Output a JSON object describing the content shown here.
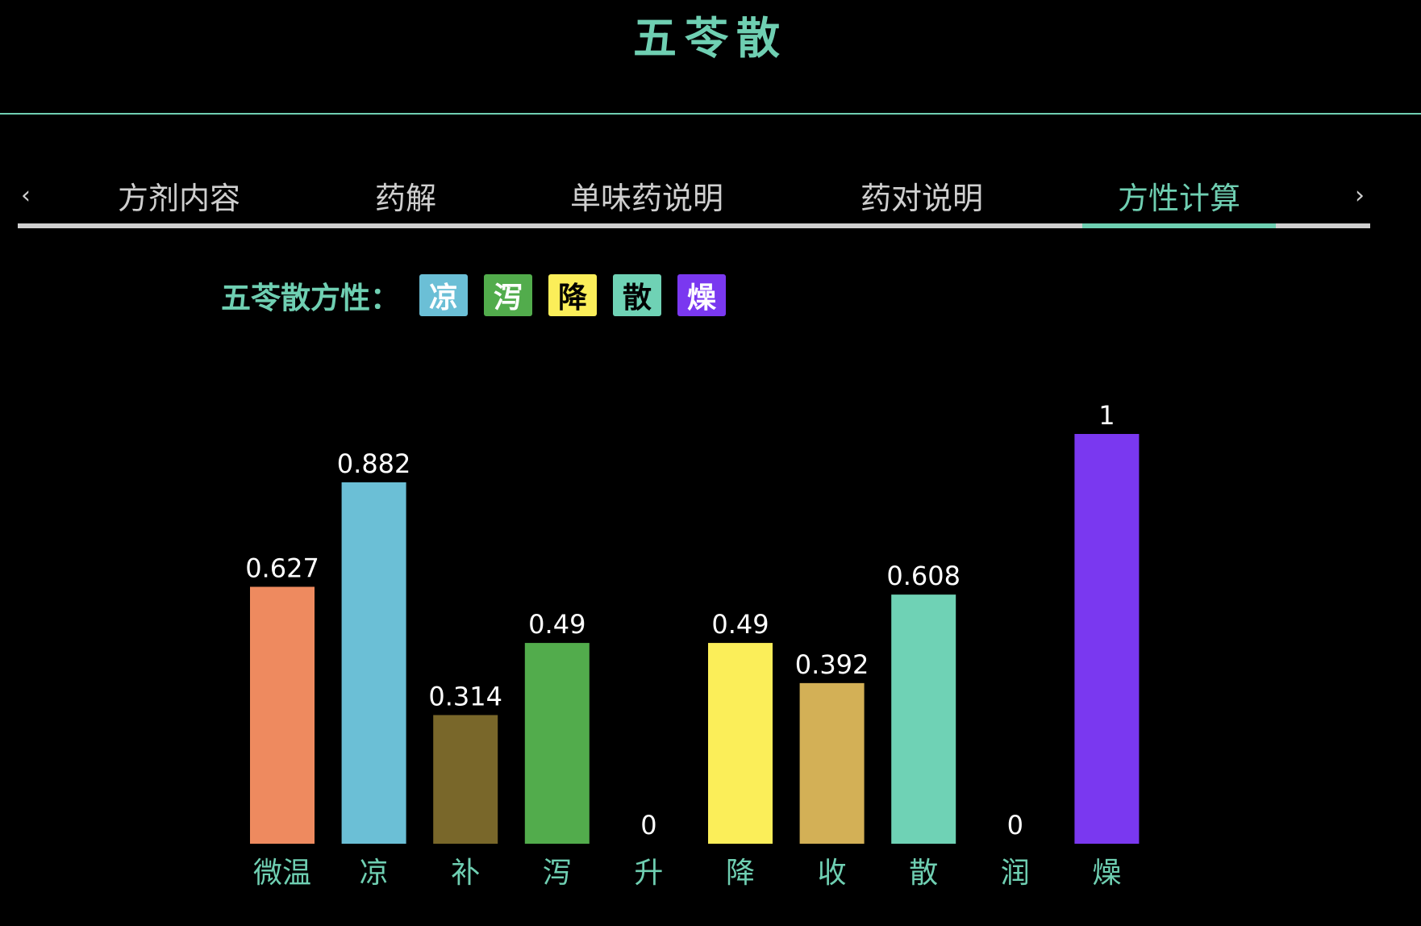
{
  "page_title": "五苓散",
  "tabs": [
    {
      "label": "方剂内容"
    },
    {
      "label": "药解"
    },
    {
      "label": "单味药说明"
    },
    {
      "label": "药对说明"
    },
    {
      "label": "方性计算"
    }
  ],
  "active_tab": 4,
  "nav": {
    "prev_icon": "chevron-left-icon",
    "prev_glyph": "‹",
    "next_icon": "chevron-right-icon",
    "next_glyph": "›"
  },
  "properties": {
    "label": "五苓散方性：",
    "badges": [
      {
        "text": "凉",
        "bg": "#6bbfd6",
        "fg": "#ffffff"
      },
      {
        "text": "泻",
        "bg": "#52ac4c",
        "fg": "#ffffff"
      },
      {
        "text": "降",
        "bg": "#fbee59",
        "fg": "#000000"
      },
      {
        "text": "散",
        "bg": "#6fd2b5",
        "fg": "#000000"
      },
      {
        "text": "燥",
        "bg": "#7a38f0",
        "fg": "#ffffff"
      }
    ]
  },
  "chart_data": {
    "type": "bar",
    "categories": [
      "微温",
      "凉",
      "补",
      "泻",
      "升",
      "降",
      "收",
      "散",
      "润",
      "燥"
    ],
    "values": [
      0.627,
      0.882,
      0.314,
      0.49,
      0,
      0.49,
      0.392,
      0.608,
      0,
      1
    ],
    "value_labels": [
      "0.627",
      "0.882",
      "0.314",
      "0.49",
      "0",
      "0.49",
      "0.392",
      "0.608",
      "0",
      "1"
    ],
    "colors": [
      "#ee8a5f",
      "#6bbfd6",
      "#79672a",
      "#52ac4c",
      "#ffffff",
      "#fbee59",
      "#d3b056",
      "#6fd2b5",
      "#ffffff",
      "#7a38f0"
    ],
    "title": "",
    "xlabel": "",
    "ylabel": "",
    "ylim": [
      0,
      1
    ],
    "grid": false,
    "legend": "none"
  }
}
